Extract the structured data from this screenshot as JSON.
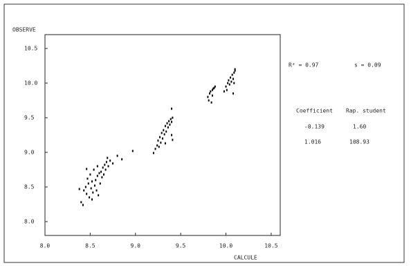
{
  "chart_data": {
    "type": "scatter",
    "x_label": "CALCULE",
    "y_label": "OBSERVE",
    "annotations": [
      "R² = 0.97",
      "s = 0.09",
      "Coefficient",
      "Rap. student",
      "-0.139",
      "1.60",
      "1.016",
      "108.93"
    ],
    "color": "#000000",
    "xlim": [
      8.0,
      10.6
    ],
    "ylim": [
      7.8,
      10.7
    ],
    "xticks": [
      {
        "value": 8,
        "label": "8.0"
      },
      8.5,
      {
        "value": 9,
        "label": "9.0"
      },
      9.5,
      {
        "value": 10,
        "label": "10.0"
      },
      10.5
    ],
    "yticks": [
      {
        "value": 8,
        "label": "8.0"
      },
      8.5,
      {
        "value": 9,
        "label": "9.0"
      },
      9.5,
      {
        "value": 10,
        "label": "10.0"
      },
      10.5
    ],
    "x": [
      8.4,
      8.42,
      8.43,
      8.45,
      8.46,
      8.47,
      8.48,
      8.49,
      8.5,
      8.51,
      8.52,
      8.53,
      8.54,
      8.55,
      8.56,
      8.57,
      8.58,
      8.59,
      8.6,
      8.61,
      8.62,
      8.63,
      8.64,
      8.65,
      8.66,
      8.67,
      8.68,
      8.69,
      8.7,
      8.72,
      8.75,
      8.38,
      8.46,
      8.52,
      8.58,
      8.8,
      8.85,
      8.97,
      9.4,
      9.2,
      9.22,
      9.24,
      9.25,
      9.26,
      9.27,
      9.28,
      9.29,
      9.3,
      9.31,
      9.32,
      9.33,
      9.34,
      9.35,
      9.36,
      9.37,
      9.38,
      9.39,
      9.4,
      9.41,
      9.4,
      9.41,
      9.33,
      9.8,
      9.81,
      9.82,
      9.83,
      9.84,
      9.85,
      9.86,
      9.87,
      9.88,
      9.85,
      9.98,
      10.0,
      10.01,
      10.02,
      10.03,
      10.04,
      10.05,
      10.06,
      10.07,
      10.08,
      10.09,
      10.1,
      10.1,
      10.08,
      10.09
    ],
    "values": [
      8.28,
      8.24,
      8.45,
      8.5,
      8.4,
      8.62,
      8.55,
      8.35,
      8.68,
      8.48,
      8.58,
      8.42,
      8.75,
      8.52,
      8.6,
      8.45,
      8.66,
      8.38,
      8.7,
      8.55,
      8.72,
      8.64,
      8.78,
      8.68,
      8.82,
      8.75,
      8.86,
      8.92,
      8.8,
      8.88,
      8.84,
      8.47,
      8.76,
      8.32,
      8.8,
      8.95,
      8.9,
      9.02,
      9.63,
      8.99,
      9.05,
      9.1,
      9.17,
      9.08,
      9.22,
      9.14,
      9.28,
      9.2,
      9.32,
      9.26,
      9.38,
      9.3,
      9.42,
      9.36,
      9.45,
      9.4,
      9.48,
      9.44,
      9.5,
      9.25,
      9.18,
      9.13,
      9.8,
      9.75,
      9.85,
      9.88,
      9.72,
      9.9,
      9.92,
      9.93,
      9.95,
      9.82,
      9.88,
      9.95,
      9.9,
      10.0,
      10.04,
      9.98,
      10.08,
      10.02,
      10.12,
      10.06,
      10.15,
      10.18,
      10.2,
      9.85,
      10.0
    ]
  }
}
